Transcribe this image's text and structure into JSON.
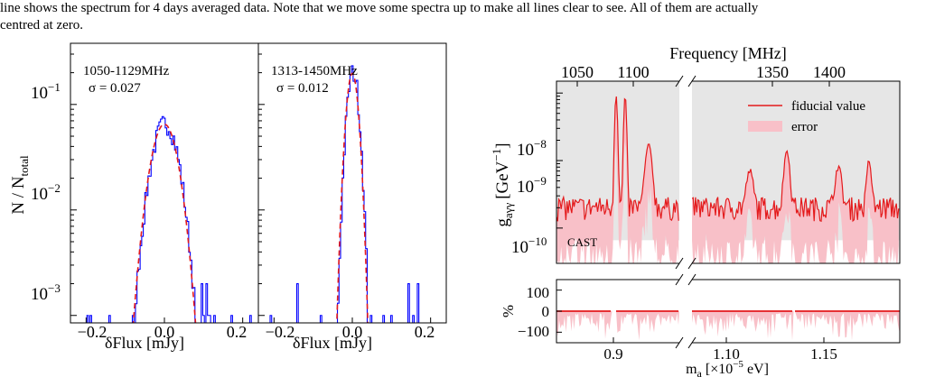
{
  "caption": {
    "line1": "line shows the spectrum for 4 days averaged data. Note that we move some spectra up to make all lines clear to see. All of them are actually",
    "line2": "centred at zero."
  },
  "chart_data": [
    {
      "type": "histogram",
      "panel": "left",
      "annotation_band": "1050-1129MHz",
      "annotation_sigma": "σ = 0.027",
      "sigma": 0.027,
      "xlabel": "δFlux [mJy]",
      "ylabel_main": "N / N",
      "ylabel_sub": "total",
      "xlim": [
        -0.24,
        0.24
      ],
      "ylim": [
        0.00085,
        0.38
      ],
      "yscale": "log",
      "x_ticks": [
        "−0.2",
        "0.0",
        "0.2"
      ],
      "y_ticks": [
        {
          "base": "10",
          "exp": "−3",
          "value": 0.001
        },
        {
          "base": "10",
          "exp": "−2",
          "value": 0.01
        },
        {
          "base": "10",
          "exp": "−1",
          "value": 0.1
        }
      ],
      "histogram_color": "#0000ff",
      "fit_color": "#e41a1c"
    },
    {
      "type": "histogram",
      "panel": "middle",
      "annotation_band": "1313-1450MHz",
      "annotation_sigma": "σ = 0.012",
      "sigma": 0.012,
      "xlabel": "δFlux [mJy]",
      "xlim": [
        -0.24,
        0.24
      ],
      "ylim": [
        0.00085,
        0.38
      ],
      "yscale": "log",
      "x_ticks": [
        "−0.2",
        "0.0",
        "0.2"
      ],
      "histogram_color": "#0000ff",
      "fit_color": "#e41a1c"
    },
    {
      "type": "line",
      "panel": "right-top",
      "top_axis_label": "Frequency [MHz]",
      "top_ticks": [
        "1050",
        "1100",
        "1350",
        "1400"
      ],
      "ylabel_main": "g",
      "ylabel_sub": "aγγ",
      "ylabel_unit": "[GeV",
      "ylabel_unit_exp": "−1",
      "ylabel_unit_close": "]",
      "y_ticks": [
        {
          "base": "10",
          "exp": "−8"
        },
        {
          "base": "10",
          "exp": "−9"
        },
        {
          "base": "10",
          "exp": "−10"
        }
      ],
      "ylim": [
        3e-11,
        1.5e-08
      ],
      "yscale": "log",
      "cast_label": "CAST",
      "cast_limit": 6.6e-11,
      "legend": [
        {
          "label": "fiducial value",
          "color": "#e41a1c"
        },
        {
          "label": "error",
          "color": "#f8c0c8"
        }
      ],
      "legend_position": "top-right",
      "series": [
        {
          "name": "fiducial value",
          "color": "#e41a1c"
        },
        {
          "name": "error",
          "color": "#f8c0c8"
        }
      ]
    },
    {
      "type": "line",
      "panel": "right-bottom",
      "ylabel": "%",
      "y_ticks": [
        "100",
        "0",
        "−100"
      ],
      "ylim": [
        -150,
        150
      ],
      "xlabel_main": "m",
      "xlabel_sub": "a",
      "xlabel_unit": " [×10",
      "xlabel_unit_exp": "−5",
      "xlabel_unit_close": " eV]",
      "x_ticks": [
        "0.9",
        "1.10",
        "1.15"
      ]
    }
  ]
}
